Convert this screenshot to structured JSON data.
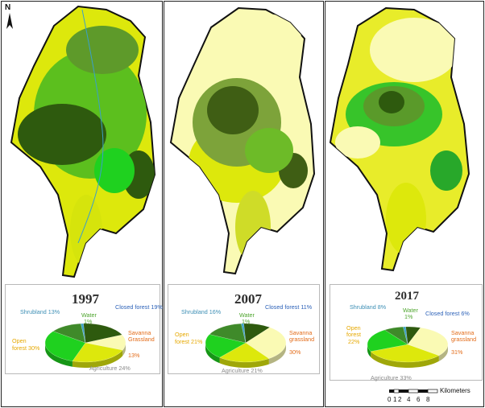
{
  "colors": {
    "closed_forest": "#2e5a0e",
    "open_forest": "#1fd11f",
    "shrubland": "#3f8a2a",
    "savanna_grassland": "#fafab4",
    "agriculture": "#dde80c",
    "water": "#3aa0c8",
    "outline": "#111111"
  },
  "north_label": "N",
  "panels": [
    {
      "year": "1997",
      "labels": {
        "shrubland": "Shrubland 13%",
        "water_name": "Water",
        "water_pct": "1%",
        "closed": "Closed forest 19%",
        "savanna_name": "Savanna",
        "savanna_sub": "Grassland",
        "savanna_pct": "13%",
        "open_1": "Open",
        "open_2": "forest 30%",
        "agri": "Agriculture 24%"
      }
    },
    {
      "year": "2007",
      "labels": {
        "shrubland": "Shrubland 16%",
        "water_name": "Water",
        "water_pct": "1%",
        "closed": "Closed forest 11%",
        "savanna_name": "Savanna",
        "savanna_sub": "grassland",
        "savanna_pct": "30%",
        "open_1": "Open",
        "open_2": "forest 21%",
        "agri": "Agriculture 21%"
      }
    },
    {
      "year": "2017",
      "labels": {
        "shrubland": "Shrubland 8%",
        "water_name": "Water",
        "water_pct": "1%",
        "closed": "Closed forest 6%",
        "savanna_name": "Savanna",
        "savanna_sub": "grassland",
        "savanna_pct": "31%",
        "open_1": "Open",
        "open_2": "forest",
        "open_3": "22%",
        "agri": "Agriculture 33%"
      }
    }
  ],
  "chart_data": [
    {
      "type": "pie",
      "title": "1997",
      "categories": [
        "Closed forest",
        "Savanna Grassland",
        "Agriculture",
        "Open forest",
        "Shrubland",
        "Water"
      ],
      "values": [
        19,
        13,
        24,
        30,
        13,
        1
      ]
    },
    {
      "type": "pie",
      "title": "2007",
      "categories": [
        "Closed forest",
        "Savanna grassland",
        "Agriculture",
        "Open forest",
        "Shrubland",
        "Water"
      ],
      "values": [
        11,
        30,
        21,
        21,
        16,
        1
      ]
    },
    {
      "type": "pie",
      "title": "2017",
      "categories": [
        "Closed forest",
        "Savanna grassland",
        "Agriculture",
        "Open forest",
        "Shrubland",
        "Water"
      ],
      "values": [
        6,
        31,
        33,
        22,
        8,
        1
      ]
    }
  ],
  "scale_bar": {
    "unit": "Kilometers",
    "ticks": [
      "0",
      "1",
      "2",
      "4",
      "6",
      "8"
    ]
  }
}
